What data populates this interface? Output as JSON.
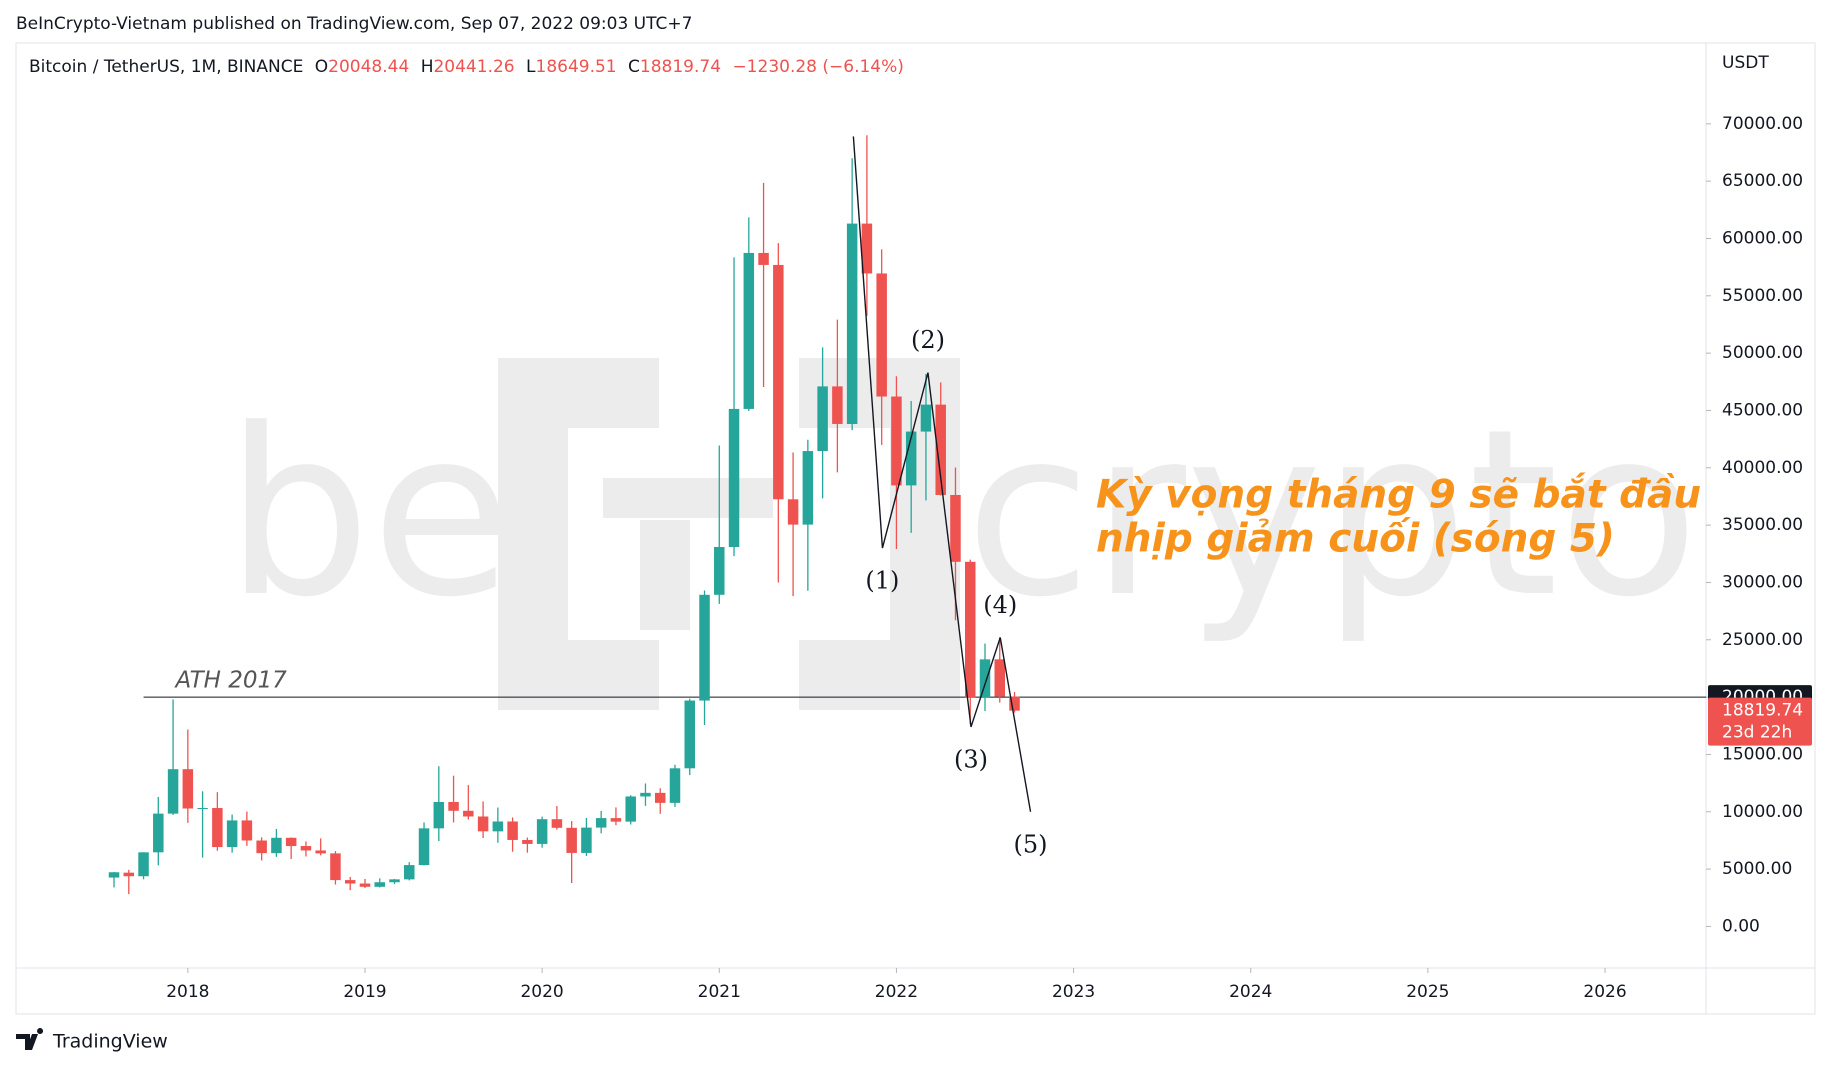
{
  "header": "BeInCrypto-Vietnam published on TradingView.com, Sep 07, 2022 09:03 UTC+7",
  "footer": "TradingView",
  "chart_data": {
    "type": "candlestick",
    "symbol": "Bitcoin / TetherUS, 1M, BINANCE",
    "ohlc_letters": [
      "O",
      "H",
      "L",
      "C"
    ],
    "change": "−1230.28 (−6.14%)",
    "axis_unit": "USDT",
    "countdown": "23d 22h",
    "up_color": "#26a69a",
    "down_color": "#ef5350",
    "grid": false,
    "watermark": [
      "be",
      "crypto"
    ],
    "x": [
      2017.5833,
      2017.6667,
      2017.75,
      2017.8333,
      2017.9167,
      2018,
      2018.0833,
      2018.1667,
      2018.25,
      2018.3333,
      2018.4167,
      2018.5,
      2018.5833,
      2018.6667,
      2018.75,
      2018.8333,
      2018.9167,
      2019,
      2019.0833,
      2019.1667,
      2019.25,
      2019.3333,
      2019.4167,
      2019.5,
      2019.5833,
      2019.6667,
      2019.75,
      2019.8333,
      2019.9167,
      2020,
      2020.0833,
      2020.1667,
      2020.25,
      2020.3333,
      2020.4167,
      2020.5,
      2020.5833,
      2020.6667,
      2020.75,
      2020.8333,
      2020.9167,
      2021,
      2021.0833,
      2021.1667,
      2021.25,
      2021.3333,
      2021.4167,
      2021.5,
      2021.5833,
      2021.6667,
      2021.75,
      2021.8333,
      2021.9167,
      2022,
      2022.0833,
      2022.1667,
      2022.25,
      2022.3333,
      2022.4167,
      2022.5,
      2022.5833,
      2022.6667
    ],
    "open": [
      4261,
      4689,
      4378,
      6463,
      9838,
      13716,
      10285,
      10326,
      6923,
      9246,
      7494,
      6391,
      7730,
      7011,
      6626,
      6371,
      4041,
      3742,
      3457,
      3854,
      4105,
      5350,
      8555,
      10855,
      10086,
      9588,
      8293,
      9153,
      7541,
      7195,
      9352,
      8600,
      6410,
      8620,
      9448,
      9138,
      11335,
      11650,
      10776,
      13791,
      19700,
      28923,
      33092,
      45135,
      58740,
      57694,
      37253,
      35045,
      41461,
      47100,
      43820,
      61300,
      56950,
      46216,
      38466,
      43160,
      45510,
      37630,
      31801,
      19942,
      23296,
      20048.44
    ],
    "high": [
      4745,
      4939,
      6470,
      11300,
      19798,
      17176,
      11786,
      11710,
      9759,
      10020,
      7764,
      8507,
      7760,
      7410,
      7680,
      6567,
      4313,
      4143,
      4198,
      4140,
      5600,
      9074,
      13970,
      13147,
      12325,
      10904,
      10370,
      9505,
      7750,
      9578,
      10500,
      9188,
      9460,
      10067,
      10380,
      11444,
      12468,
      12050,
      14100,
      19863,
      29300,
      41950,
      58352,
      61844,
      64854,
      59592,
      41330,
      42448,
      50500,
      52920,
      67000,
      69000,
      59053,
      47990,
      45821,
      48189,
      47444,
      40023,
      31986,
      24668,
      25212,
      20441.26
    ],
    "low": [
      3400,
      2817,
      4110,
      5325,
      9722,
      9035,
      6000,
      6600,
      6430,
      7032,
      5755,
      6070,
      5880,
      6100,
      6200,
      3652,
      3157,
      3349,
      3400,
      3689,
      4012,
      5332,
      7444,
      9071,
      9320,
      7710,
      7300,
      6515,
      6435,
      6871,
      8445,
      3782,
      6150,
      8117,
      8833,
      8893,
      10518,
      9825,
      10416,
      13195,
      17572,
      28130,
      32296,
      44950,
      47044,
      30000,
      28805,
      29278,
      37332,
      39600,
      43283,
      53256,
      42000,
      32917,
      34322,
      37155,
      37578,
      26700,
      17622,
      18782,
      19520,
      18649.51
    ],
    "close": [
      4724,
      4378,
      6463,
      9838,
      13716,
      10285,
      10326,
      6923,
      9246,
      7494,
      6391,
      7730,
      7011,
      6626,
      6371,
      4041,
      3742,
      3457,
      3854,
      4105,
      5350,
      8555,
      10855,
      10086,
      9588,
      8293,
      9153,
      7541,
      7195,
      9352,
      8600,
      6410,
      8620,
      9448,
      9138,
      11335,
      11650,
      10776,
      13791,
      19700,
      28923,
      33092,
      45135,
      58740,
      57694,
      37253,
      35045,
      41461,
      47100,
      43824,
      61299,
      56950,
      46216,
      38466,
      43160,
      45510,
      37630,
      31801,
      19942,
      23293,
      20050,
      18819.74
    ],
    "xlim": [
      2017.03,
      2026.57
    ],
    "xticks": [
      2018,
      2019,
      2020,
      2021,
      2022,
      2023,
      2024,
      2025,
      2026
    ],
    "ylim": [
      -3626,
      77050
    ],
    "yticks": [
      {
        "value": 0,
        "label": "0.00"
      },
      {
        "value": 5000,
        "label": "5000.00"
      },
      {
        "value": 10000,
        "label": "10000.00"
      },
      {
        "value": 15000,
        "label": "15000.00"
      },
      {
        "value": 20000,
        "label": "20000.00"
      },
      {
        "value": 25000,
        "label": "25000.00"
      },
      {
        "value": 30000,
        "label": "30000.00"
      },
      {
        "value": 35000,
        "label": "35000.00"
      },
      {
        "value": 40000,
        "label": "40000.00"
      },
      {
        "value": 45000,
        "label": "45000.00"
      },
      {
        "value": 50000,
        "label": "50000.00"
      },
      {
        "value": 55000,
        "label": "55000.00"
      },
      {
        "value": 60000,
        "label": "60000.00"
      },
      {
        "value": 65000,
        "label": "65000.00"
      },
      {
        "value": 70000,
        "label": "70000.00"
      }
    ],
    "hline": {
      "value": 20000,
      "label": "20000.00",
      "text": "ATH 2017",
      "x_start": 2017.75
    },
    "waves": {
      "x": [
        2021.757,
        2021.921,
        2022.178,
        2022.421,
        2022.586,
        2022.757
      ],
      "y": [
        68900,
        33000,
        48300,
        17400,
        25200,
        10000
      ],
      "labels": [
        "(1)",
        "(2)",
        "(3)",
        "(4)",
        "(5)"
      ]
    },
    "annotation": [
      "Kỳ vọng tháng 9 sẽ bắt đầu",
      "nhịp giảm cuối (sóng 5)"
    ]
  }
}
